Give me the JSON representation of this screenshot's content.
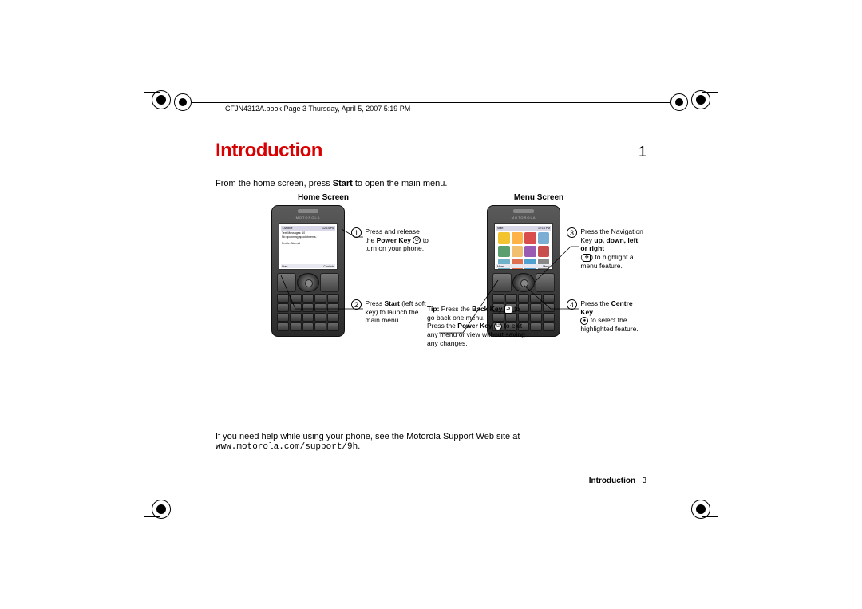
{
  "meta": {
    "header": "CFJN4312A.book  Page 3  Thursday, April 5, 2007  5:19 PM"
  },
  "title": "Introduction",
  "chapter_number": "1",
  "intro_line_prefix": "From the home screen, press ",
  "intro_line_bold": "Start",
  "intro_line_suffix": " to open the main menu.",
  "columns": {
    "home": {
      "heading": "Home Screen",
      "screen": {
        "status_left": "T-Mobile",
        "status_right": "12:14 PM",
        "line1": "Text Messages: 10",
        "line2": "No upcoming appointments.",
        "line3": "Profile: Normal",
        "softleft": "Start",
        "softright": "Contacts"
      },
      "callouts": [
        {
          "num": "1",
          "pre": "Press and release the ",
          "bold": "Power Key",
          "icon": "⏻",
          "post": " to turn on your phone."
        },
        {
          "num": "2",
          "pre": "Press ",
          "bold": "Start",
          "post": " (left soft key) to launch the main menu."
        }
      ]
    },
    "menu": {
      "heading": "Menu Screen",
      "screen": {
        "status_left": "Start",
        "status_right": "12:14 PM",
        "softleft": "More",
        "softright": "Menu"
      },
      "icon_colors": [
        "#f4c430",
        "#ffb347",
        "#d94d4d",
        "#7aaed4",
        "#5aa06e",
        "#f0c070",
        "#9a5bb5",
        "#c94f4f",
        "#6fb1c9",
        "#e07050",
        "#50a0d0",
        "#888888"
      ],
      "callouts": [
        {
          "num": "3",
          "pre": "Press the Navigation Key ",
          "bold": "up, down, left or right",
          "post2_pre": "(",
          "post2_icon": "✥",
          "post2_suf": ") to highlight a menu feature."
        },
        {
          "num": "4",
          "pre": "Press the ",
          "bold": "Centre Key",
          "icon": "●",
          "post": " to select the highlighted feature."
        }
      ]
    },
    "tip": {
      "tip_label": "Tip:",
      "line1_pre": " Press the ",
      "line1_bold": "Back Key",
      "line1_icon": "⮐",
      "line1_post": " to go back one menu.",
      "line2_pre": "Press the ",
      "line2_bold": "Power Key",
      "line2_icon": "⏻",
      "line2_post": " to exit any menu or view without saving any changes."
    }
  },
  "help": {
    "prefix": "If you need help while using your phone, see the Motorola Support Web site at ",
    "url": "www.motorola.com/support/9h",
    "suffix": "."
  },
  "footer": {
    "section": "Introduction",
    "page": "3"
  },
  "colors": {
    "title": "#d80000",
    "text": "#000000"
  }
}
